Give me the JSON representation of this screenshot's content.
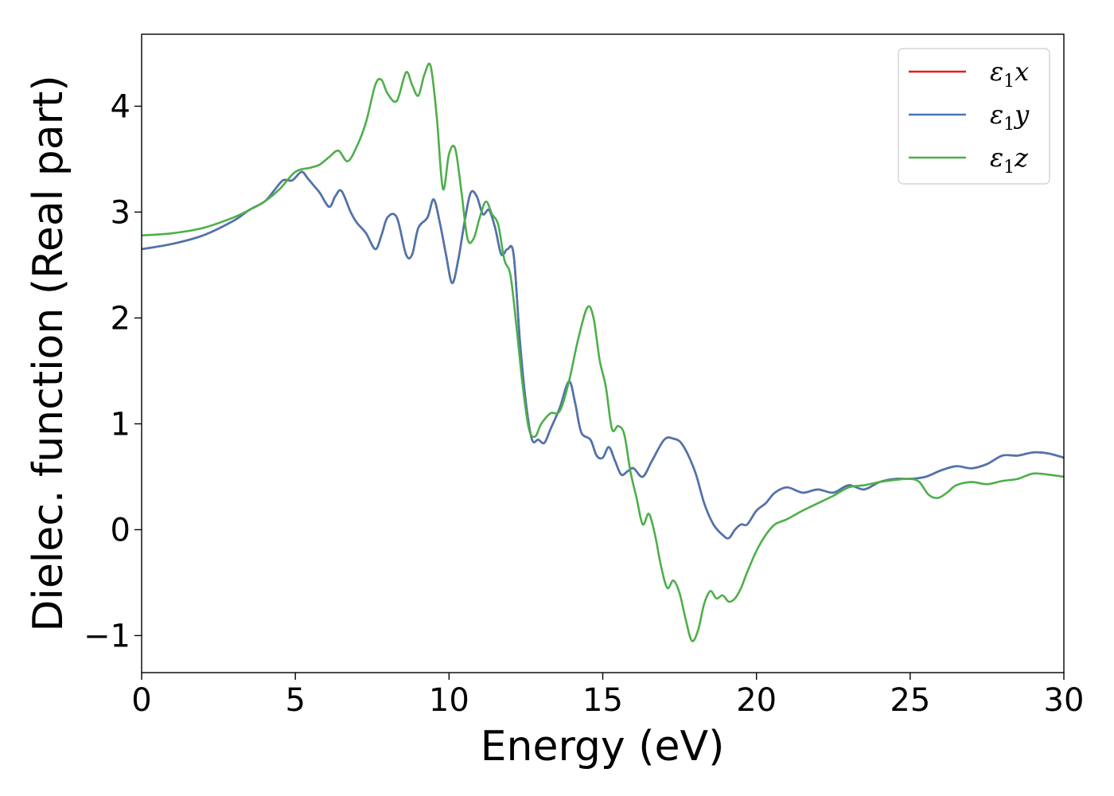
{
  "chart_data": {
    "type": "line",
    "xlabel": "Energy (eV)",
    "ylabel": "Dielec. function (Real part)",
    "xlim": [
      0,
      30
    ],
    "ylim": [
      -1.35,
      4.68
    ],
    "xticks": [
      0,
      5,
      10,
      15,
      20,
      25,
      30
    ],
    "xtick_labels": [
      "0",
      "5",
      "10",
      "15",
      "20",
      "25",
      "30"
    ],
    "yticks": [
      -1,
      0,
      1,
      2,
      3,
      4
    ],
    "ytick_labels": [
      "−1",
      "0",
      "1",
      "2",
      "3",
      "4"
    ],
    "grid": false,
    "legend_position": "top-right",
    "series": [
      {
        "name": "ε1x",
        "name_base": "ε",
        "name_sub": "1",
        "name_tail": "x",
        "color": "#e41a1c",
        "x": [
          0,
          1,
          2,
          3,
          3.5,
          4,
          4.3,
          4.6,
          4.9,
          5.2,
          5.4,
          5.6,
          5.8,
          6.1,
          6.3,
          6.5,
          6.8,
          7.0,
          7.3,
          7.6,
          7.8,
          8.0,
          8.3,
          8.6,
          8.8,
          9.0,
          9.3,
          9.5,
          9.7,
          9.9,
          10.1,
          10.3,
          10.5,
          10.7,
          10.9,
          11.1,
          11.3,
          11.5,
          11.7,
          11.9,
          12.1,
          12.3,
          12.5,
          12.7,
          12.9,
          13.1,
          13.3,
          13.6,
          13.9,
          14.1,
          14.3,
          14.6,
          14.8,
          15.0,
          15.2,
          15.4,
          15.6,
          15.8,
          16.0,
          16.3,
          16.6,
          17.0,
          17.3,
          17.6,
          18.0,
          18.3,
          18.6,
          18.9,
          19.1,
          19.3,
          19.5,
          19.7,
          20.0,
          20.3,
          20.6,
          21.0,
          21.5,
          22.0,
          22.5,
          23.0,
          23.5,
          24.0,
          24.5,
          25.0,
          25.5,
          26.0,
          26.5,
          27.0,
          27.5,
          28.0,
          28.5,
          29.0,
          29.5,
          30.0
        ],
        "y": [
          2.65,
          2.7,
          2.78,
          2.92,
          3.02,
          3.1,
          3.2,
          3.3,
          3.3,
          3.38,
          3.32,
          3.25,
          3.18,
          3.05,
          3.15,
          3.2,
          3.0,
          2.9,
          2.8,
          2.65,
          2.78,
          2.95,
          2.95,
          2.6,
          2.6,
          2.85,
          2.95,
          3.12,
          2.9,
          2.6,
          2.33,
          2.55,
          2.9,
          3.18,
          3.15,
          2.98,
          3.02,
          2.85,
          2.6,
          2.65,
          2.6,
          1.8,
          1.2,
          0.85,
          0.85,
          0.82,
          0.95,
          1.15,
          1.4,
          1.2,
          0.92,
          0.85,
          0.7,
          0.68,
          0.78,
          0.65,
          0.52,
          0.55,
          0.58,
          0.5,
          0.65,
          0.85,
          0.86,
          0.8,
          0.55,
          0.25,
          0.05,
          -0.05,
          -0.08,
          0.0,
          0.05,
          0.05,
          0.18,
          0.25,
          0.35,
          0.4,
          0.35,
          0.38,
          0.35,
          0.42,
          0.38,
          0.45,
          0.48,
          0.48,
          0.5,
          0.56,
          0.6,
          0.58,
          0.62,
          0.7,
          0.7,
          0.73,
          0.72,
          0.68
        ]
      },
      {
        "name": "ε1y",
        "name_base": "ε",
        "name_sub": "1",
        "name_tail": "y",
        "color": "#4a76b0",
        "x": [
          0,
          1,
          2,
          3,
          3.5,
          4,
          4.3,
          4.6,
          4.9,
          5.2,
          5.4,
          5.6,
          5.8,
          6.1,
          6.3,
          6.5,
          6.8,
          7.0,
          7.3,
          7.6,
          7.8,
          8.0,
          8.3,
          8.6,
          8.8,
          9.0,
          9.3,
          9.5,
          9.7,
          9.9,
          10.1,
          10.3,
          10.5,
          10.7,
          10.9,
          11.1,
          11.3,
          11.5,
          11.7,
          11.9,
          12.1,
          12.3,
          12.5,
          12.7,
          12.9,
          13.1,
          13.3,
          13.6,
          13.9,
          14.1,
          14.3,
          14.6,
          14.8,
          15.0,
          15.2,
          15.4,
          15.6,
          15.8,
          16.0,
          16.3,
          16.6,
          17.0,
          17.3,
          17.6,
          18.0,
          18.3,
          18.6,
          18.9,
          19.1,
          19.3,
          19.5,
          19.7,
          20.0,
          20.3,
          20.6,
          21.0,
          21.5,
          22.0,
          22.5,
          23.0,
          23.5,
          24.0,
          24.5,
          25.0,
          25.5,
          26.0,
          26.5,
          27.0,
          27.5,
          28.0,
          28.5,
          29.0,
          29.5,
          30.0
        ],
        "y": [
          2.65,
          2.7,
          2.78,
          2.92,
          3.02,
          3.1,
          3.2,
          3.3,
          3.3,
          3.38,
          3.32,
          3.25,
          3.18,
          3.05,
          3.15,
          3.2,
          3.0,
          2.9,
          2.8,
          2.65,
          2.78,
          2.95,
          2.95,
          2.6,
          2.6,
          2.85,
          2.95,
          3.12,
          2.9,
          2.6,
          2.33,
          2.55,
          2.9,
          3.18,
          3.15,
          2.98,
          3.02,
          2.85,
          2.6,
          2.65,
          2.6,
          1.8,
          1.2,
          0.85,
          0.85,
          0.82,
          0.95,
          1.15,
          1.4,
          1.2,
          0.92,
          0.85,
          0.7,
          0.68,
          0.78,
          0.65,
          0.52,
          0.55,
          0.58,
          0.5,
          0.65,
          0.85,
          0.86,
          0.8,
          0.55,
          0.25,
          0.05,
          -0.05,
          -0.08,
          0.0,
          0.05,
          0.05,
          0.18,
          0.25,
          0.35,
          0.4,
          0.35,
          0.38,
          0.35,
          0.42,
          0.38,
          0.45,
          0.48,
          0.48,
          0.5,
          0.56,
          0.6,
          0.58,
          0.62,
          0.7,
          0.7,
          0.73,
          0.72,
          0.68
        ]
      },
      {
        "name": "ε1z",
        "name_base": "ε",
        "name_sub": "1",
        "name_tail": "z",
        "color": "#4daf4a",
        "x": [
          0,
          1,
          2,
          3,
          3.5,
          4,
          4.5,
          5.0,
          5.5,
          5.8,
          6.1,
          6.4,
          6.7,
          7.0,
          7.3,
          7.6,
          7.8,
          8.0,
          8.3,
          8.6,
          8.8,
          9.0,
          9.2,
          9.4,
          9.6,
          9.8,
          10.0,
          10.2,
          10.4,
          10.6,
          10.8,
          11.0,
          11.2,
          11.4,
          11.6,
          11.8,
          12.0,
          12.2,
          12.4,
          12.6,
          12.8,
          13.0,
          13.3,
          13.6,
          13.9,
          14.2,
          14.5,
          14.7,
          14.9,
          15.1,
          15.3,
          15.5,
          15.7,
          15.9,
          16.1,
          16.3,
          16.5,
          16.7,
          16.9,
          17.1,
          17.3,
          17.5,
          17.7,
          17.9,
          18.1,
          18.3,
          18.5,
          18.7,
          18.9,
          19.1,
          19.3,
          19.5,
          19.7,
          20.0,
          20.3,
          20.6,
          21.0,
          21.5,
          22.0,
          22.5,
          23.0,
          23.5,
          24.0,
          24.5,
          25.0,
          25.3,
          25.6,
          25.9,
          26.2,
          26.5,
          27.0,
          27.5,
          28.0,
          28.5,
          29.0,
          29.5,
          30.0
        ],
        "y": [
          2.78,
          2.8,
          2.85,
          2.95,
          3.02,
          3.1,
          3.22,
          3.38,
          3.42,
          3.45,
          3.52,
          3.58,
          3.48,
          3.62,
          3.85,
          4.2,
          4.25,
          4.12,
          4.05,
          4.32,
          4.2,
          4.1,
          4.3,
          4.38,
          3.9,
          3.22,
          3.55,
          3.6,
          3.2,
          2.75,
          2.75,
          2.95,
          3.1,
          2.98,
          2.88,
          2.55,
          2.4,
          1.9,
          1.35,
          0.95,
          0.88,
          1.0,
          1.1,
          1.12,
          1.4,
          1.8,
          2.1,
          2.0,
          1.6,
          1.35,
          0.95,
          0.98,
          0.9,
          0.55,
          0.3,
          0.05,
          0.15,
          -0.05,
          -0.35,
          -0.55,
          -0.48,
          -0.6,
          -0.85,
          -1.05,
          -0.95,
          -0.7,
          -0.58,
          -0.65,
          -0.62,
          -0.68,
          -0.65,
          -0.55,
          -0.4,
          -0.2,
          -0.05,
          0.05,
          0.1,
          0.18,
          0.25,
          0.32,
          0.4,
          0.42,
          0.45,
          0.47,
          0.48,
          0.45,
          0.33,
          0.3,
          0.35,
          0.42,
          0.45,
          0.43,
          0.46,
          0.48,
          0.53,
          0.52,
          0.5
        ]
      }
    ]
  }
}
